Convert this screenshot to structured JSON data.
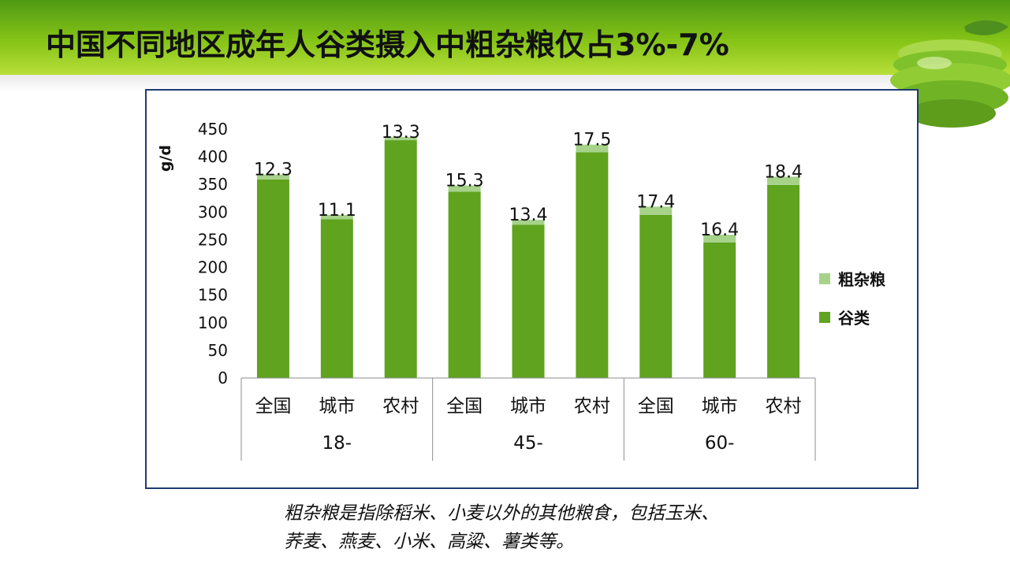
{
  "slide": {
    "title": "中国不同地区成年人谷类摄入中粗杂粮仅占3%-7%"
  },
  "chart_data": {
    "type": "bar",
    "stacked": true,
    "ylabel": "g/d",
    "ylim": [
      0,
      450
    ],
    "yticks": [
      0,
      50,
      100,
      150,
      200,
      250,
      300,
      350,
      400,
      450
    ],
    "grid": false,
    "legend_position": "right",
    "categories": [
      "全国",
      "城市",
      "农村",
      "全国",
      "城市",
      "农村",
      "全国",
      "城市",
      "农村"
    ],
    "groups": [
      {
        "label": "18-",
        "span": 3
      },
      {
        "label": "45-",
        "span": 3
      },
      {
        "label": "60-",
        "span": 3
      }
    ],
    "series": [
      {
        "name": "谷类",
        "color": "#5fa31f",
        "values": [
          359,
          287,
          430,
          337,
          277,
          408,
          295,
          245,
          349
        ]
      },
      {
        "name": "粗杂粮",
        "color": "#a6d28a",
        "values": [
          9,
          8,
          6,
          11,
          9,
          14,
          15,
          14,
          15
        ]
      }
    ],
    "data_labels": [
      "12.3",
      "11.1",
      "13.3",
      "15.3",
      "13.4",
      "17.5",
      "17.4",
      "16.4",
      "18.4"
    ]
  },
  "note": {
    "line1": "粗杂粮是指除稻米、小麦以外的其他粮食，包括玉米、",
    "line2": "荞麦、燕麦、小米、高粱、薯类等。"
  }
}
